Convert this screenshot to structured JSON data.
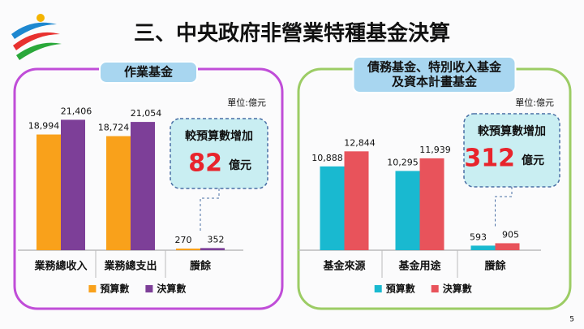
{
  "slide": {
    "title": "三、中央政府非營業特種基金決算",
    "page_number": 5
  },
  "chart_data": [
    {
      "type": "bar",
      "title": [
        "作業基金"
      ],
      "unit": "單位:億元",
      "categories": [
        "業務總收入",
        "業務總支出",
        "賸餘"
      ],
      "series": [
        {
          "name": "預算數",
          "color": "#f9a11b",
          "values": [
            18994,
            18724,
            270
          ],
          "value_labels": [
            "18,994",
            "18,724",
            "270"
          ]
        },
        {
          "name": "決算數",
          "color": "#7d3f98",
          "values": [
            21406,
            21054,
            352
          ],
          "value_labels": [
            "21,406",
            "21,054",
            "352"
          ]
        }
      ],
      "ylim": [
        0,
        24000
      ],
      "annotation": {
        "text": "較預算數增加",
        "value": 82,
        "unit": "億元"
      }
    },
    {
      "type": "bar",
      "title": [
        "債務基金、特別收入基金",
        "及資本計畫基金"
      ],
      "unit": "單位:億元",
      "categories": [
        "基金來源",
        "基金用途",
        "賸餘"
      ],
      "series": [
        {
          "name": "預算數",
          "color": "#19b9d0",
          "values": [
            10888,
            10295,
            593
          ],
          "value_labels": [
            "10,888",
            "10,295",
            "593"
          ]
        },
        {
          "name": "決算數",
          "color": "#e8535b",
          "values": [
            12844,
            11939,
            905
          ],
          "value_labels": [
            "12,844",
            "11,939",
            "905"
          ]
        }
      ],
      "ylim": [
        0,
        19000
      ],
      "annotation": {
        "text": "較預算數增加",
        "value": 312,
        "unit": "億元"
      }
    }
  ]
}
